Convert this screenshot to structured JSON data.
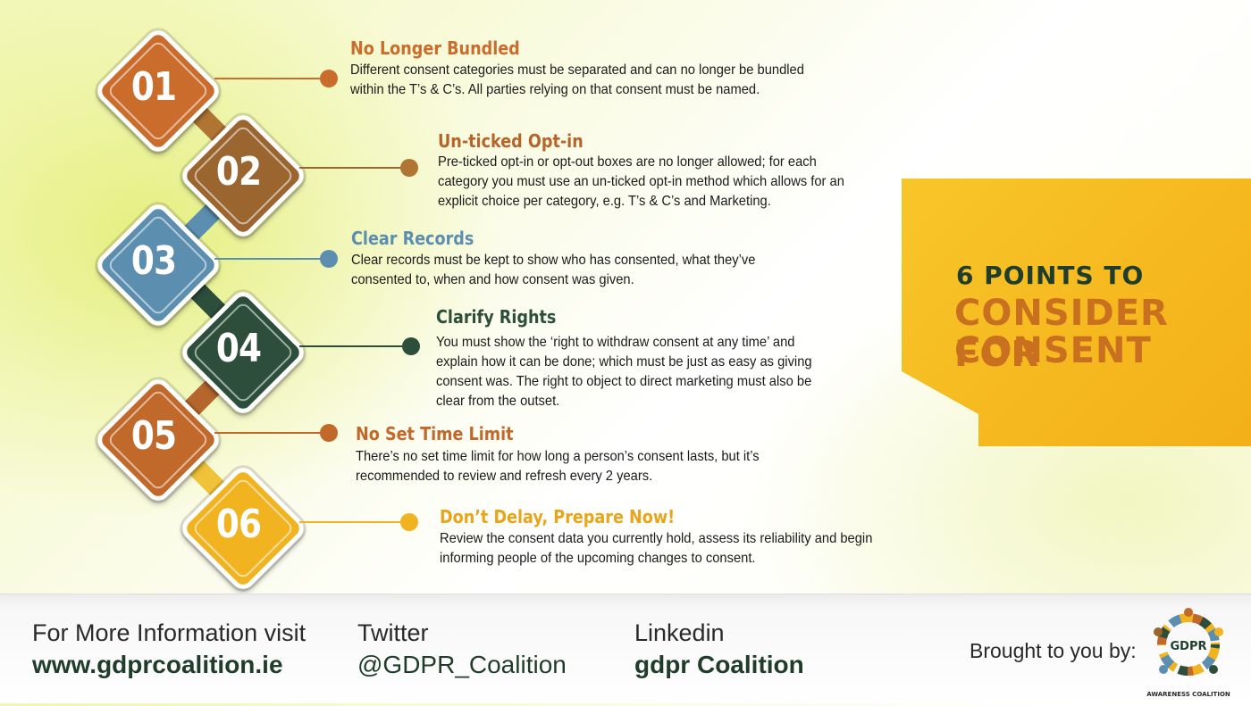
{
  "points": [
    {
      "number": "01",
      "title": "No Longer Bundled",
      "lines": [
        "Different consent categories must be separated and can no longer be bundled",
        "within the T’s & C’s.  All parties relying on that consent must be named."
      ],
      "color": "#c96c2c"
    },
    {
      "number": "02",
      "title": "Un-ticked Opt-in",
      "lines": [
        "Pre-ticked opt-in or opt-out boxes are no longer allowed; for each",
        "category you must use an un-ticked opt-in method which allows for an",
        "explicit choice per category, e.g. T’s & C’s and Marketing."
      ],
      "color": "#9b6530"
    },
    {
      "number": "03",
      "title": "Clear Records",
      "lines": [
        "Clear records must be kept to show who has consented, what they’ve",
        "consented to, when and how consent was given."
      ],
      "color": "#5b8eaf"
    },
    {
      "number": "04",
      "title": "Clarify Rights",
      "lines": [
        "You must show the ‘right to withdraw consent at any time’ and",
        "explain how it can be done; which must be just as easy as giving",
        "consent was.  The right to object to direct marketing must also be",
        "clear from the outset."
      ],
      "color": "#2c4e3a"
    },
    {
      "number": "05",
      "title": "No Set Time Limit",
      "lines": [
        "There’s no set time limit for how long a person’s consent lasts, but it’s",
        "recommended to review and refresh every 2 years."
      ],
      "color": "#c0692b"
    },
    {
      "number": "06",
      "title": "Don’t Delay, Prepare Now!",
      "lines": [
        "Review the consent data you currently hold, assess its reliability and begin",
        "informing people of the upcoming changes to consent."
      ],
      "color": "#f1b320"
    }
  ],
  "title_panel": {
    "line1": "6 POINTS TO",
    "line2": "CONSIDER FOR",
    "line3": "CONSENT"
  },
  "footer": {
    "website_label": "For More Information visit",
    "website_value": "www.gdprcoalition.ie",
    "twitter_label": "Twitter",
    "twitter_value": "@GDPR_Coalition",
    "linkedin_label": "Linkedin",
    "linkedin_value": "gdpr Coalition",
    "brought_by": "Brought to you by:",
    "logo_text": "GDPR",
    "logo_subtext": "AWARENESS COALITION"
  },
  "colors": {
    "dark_green": "#1f3d2a",
    "orange_text": "#c8701f",
    "panel_yellow": "#f5b81e"
  }
}
